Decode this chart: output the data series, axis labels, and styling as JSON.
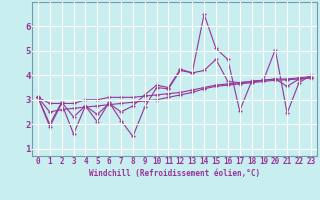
{
  "xlabel": "Windchill (Refroidissement éolien,°C)",
  "bg_color": "#c8eef0",
  "grid_color": "#ffffff",
  "line_color": "#993399",
  "xlim": [
    -0.5,
    23.5
  ],
  "ylim": [
    0.7,
    7.0
  ],
  "xticks": [
    0,
    1,
    2,
    3,
    4,
    5,
    6,
    7,
    8,
    9,
    10,
    11,
    12,
    13,
    14,
    15,
    16,
    17,
    18,
    19,
    20,
    21,
    22,
    23
  ],
  "yticks": [
    1,
    2,
    3,
    4,
    5,
    6
  ],
  "series": [
    [
      3.1,
      1.9,
      2.85,
      1.6,
      2.75,
      2.1,
      2.9,
      2.15,
      1.5,
      2.7,
      3.5,
      3.45,
      4.2,
      4.1,
      6.5,
      5.1,
      4.65,
      2.55,
      3.75,
      3.8,
      5.05,
      2.45,
      3.7,
      4.0
    ],
    [
      3.1,
      2.85,
      2.85,
      2.85,
      3.0,
      3.0,
      3.1,
      3.1,
      3.1,
      3.15,
      3.2,
      3.25,
      3.3,
      3.4,
      3.5,
      3.6,
      3.65,
      3.7,
      3.75,
      3.8,
      3.85,
      3.85,
      3.9,
      3.95
    ],
    [
      3.1,
      2.5,
      2.6,
      2.65,
      2.7,
      2.75,
      2.8,
      2.85,
      2.9,
      2.95,
      3.0,
      3.1,
      3.2,
      3.3,
      3.45,
      3.55,
      3.6,
      3.65,
      3.7,
      3.75,
      3.8,
      3.82,
      3.85,
      3.9
    ],
    [
      3.1,
      2.0,
      2.9,
      2.3,
      2.75,
      2.4,
      2.85,
      2.5,
      2.75,
      3.2,
      3.6,
      3.5,
      4.25,
      4.1,
      4.2,
      4.65,
      3.75,
      3.7,
      3.75,
      3.8,
      3.85,
      3.55,
      3.85,
      3.9
    ]
  ],
  "xlabel_fontsize": 5.5,
  "tick_fontsize": 5.5,
  "ytick_fontsize": 6.5
}
